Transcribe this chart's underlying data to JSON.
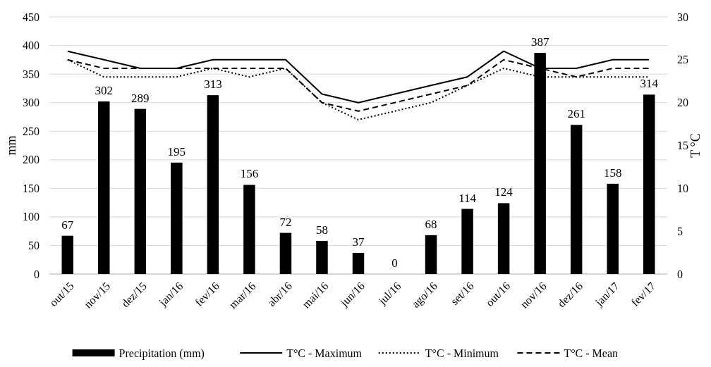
{
  "chart_data": {
    "type": "bar",
    "categories": [
      "out/15",
      "nov/15",
      "dez/15",
      "jan/16",
      "fev/16",
      "mar/16",
      "abr/16",
      "mai/16",
      "jun/16",
      "jul/16",
      "ago/16",
      "set/16",
      "out/16",
      "nov/16",
      "dez/16",
      "jan/17",
      "fev/17"
    ],
    "ylabel": "mm",
    "y2label": "T °C",
    "ylim": [
      0,
      450
    ],
    "yticks": [
      0,
      50,
      100,
      150,
      200,
      250,
      300,
      350,
      400,
      450
    ],
    "y2lim": [
      0,
      30
    ],
    "y2ticks": [
      0,
      5,
      10,
      15,
      20,
      25,
      30
    ],
    "grid": "y",
    "legend": "bottom",
    "series": [
      {
        "name": "Precipitation (mm)",
        "color": "#000000",
        "values": [
          67,
          302,
          289,
          195,
          313,
          156,
          72,
          58,
          37,
          0,
          68,
          114,
          124,
          387,
          261,
          158,
          314
        ],
        "value_labels": [
          "67",
          "302",
          "289",
          "195",
          "313",
          "156",
          "72",
          "58",
          "37",
          "0",
          "68",
          "114",
          "124",
          "387",
          "261",
          "158",
          "314"
        ]
      },
      {
        "name": "T°C - Maximum",
        "type": "line",
        "axis": "y2",
        "color": "#000000",
        "line_style": "solid",
        "values": [
          26,
          25,
          24,
          24,
          25,
          25,
          25,
          21,
          20,
          21,
          22,
          23,
          26,
          24,
          24,
          25,
          25
        ]
      },
      {
        "name": "T°C - Minimum",
        "type": "line",
        "axis": "y2",
        "color": "#000000",
        "line_style": "dotted",
        "values": [
          25,
          23,
          23,
          23,
          24,
          23,
          24,
          20,
          18,
          19,
          20,
          22,
          24,
          23,
          23,
          23,
          23
        ]
      },
      {
        "name": "T°C - Mean",
        "type": "line",
        "axis": "y2",
        "color": "#000000",
        "line_style": "dashed",
        "values": [
          25,
          24,
          24,
          24,
          24,
          24,
          24,
          20,
          19,
          20,
          21,
          22,
          25,
          24,
          23,
          24,
          24
        ]
      }
    ]
  }
}
